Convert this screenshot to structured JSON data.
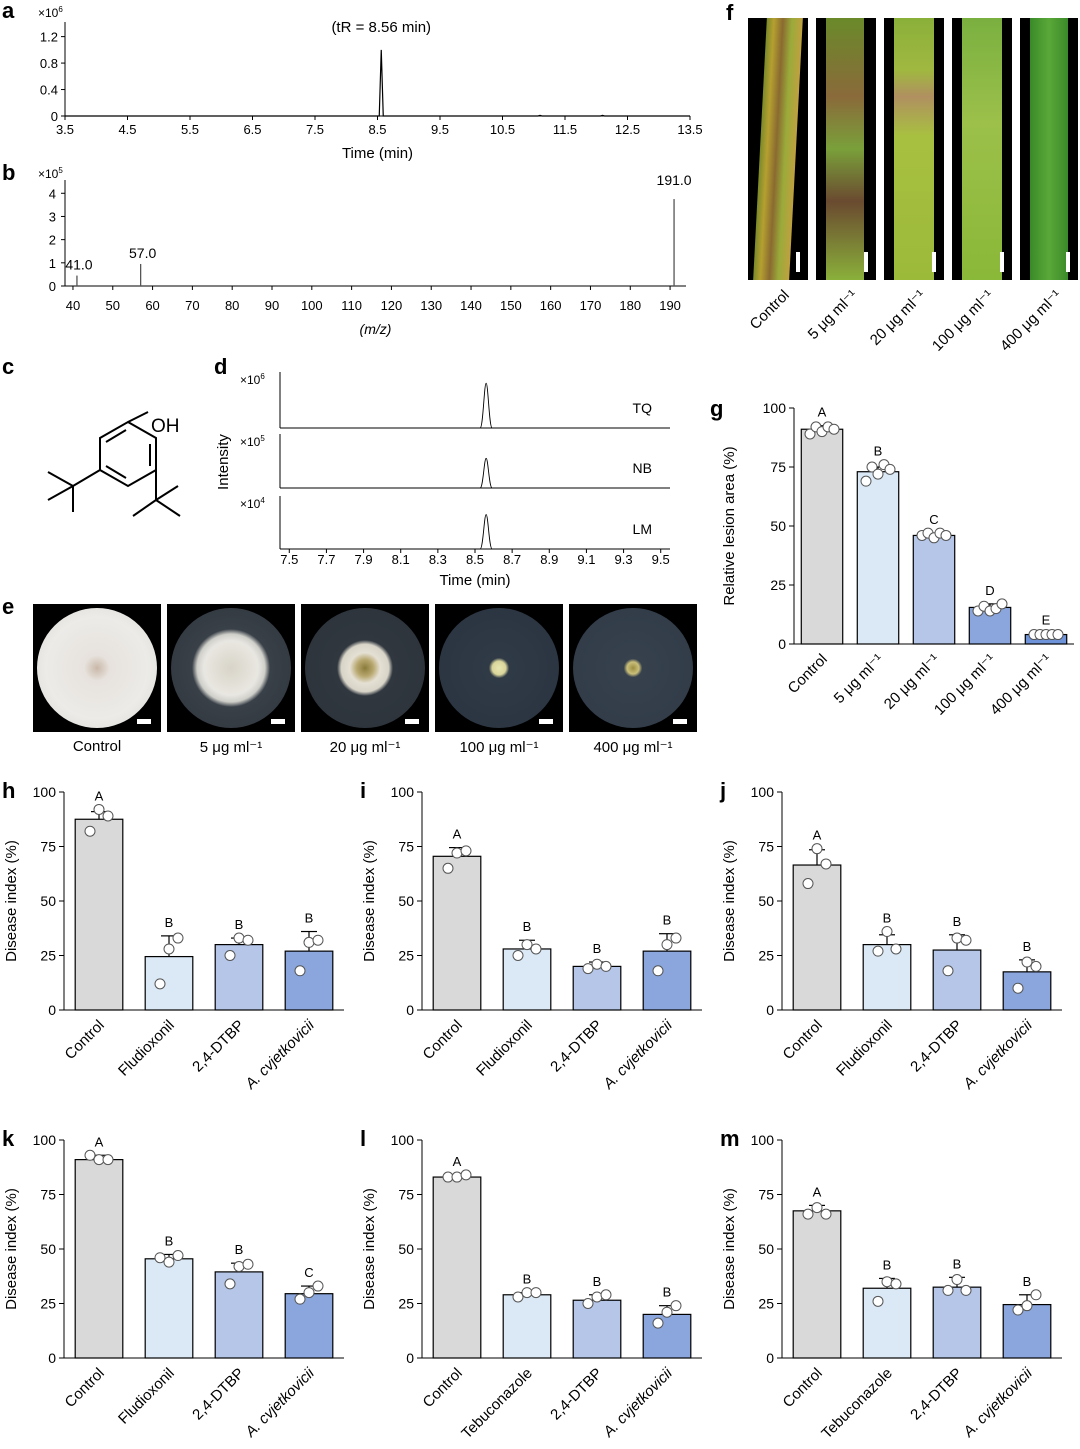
{
  "panels": {
    "a": {
      "label": "a",
      "peak_note": "(tR = 8.56 min)",
      "exponent": "×10",
      "exponent_power": "6",
      "xlabel": "Time (min)",
      "xticks": [
        "3.5",
        "4.5",
        "5.5",
        "6.5",
        "7.5",
        "8.5",
        "9.5",
        "10.5",
        "11.5",
        "12.5",
        "13.5"
      ],
      "yticks": [
        "0",
        "0.4",
        "0.8",
        "1.2"
      ]
    },
    "b": {
      "label": "b",
      "exponent": "×10",
      "exponent_power": "5",
      "xlabel": "(m/z)",
      "xticks": [
        "40",
        "50",
        "60",
        "70",
        "80",
        "90",
        "100",
        "110",
        "120",
        "130",
        "140",
        "150",
        "160",
        "170",
        "180",
        "190"
      ],
      "yticks": [
        "0",
        "1",
        "2",
        "3",
        "4"
      ],
      "peak_labels": [
        "41.0",
        "57.0",
        "191.0"
      ]
    },
    "c": {
      "label": "c",
      "oh": "OH"
    },
    "d": {
      "label": "d",
      "ylabel": "Intensity",
      "xlabel": "Time (min)",
      "xticks": [
        "7.5",
        "7.7",
        "7.9",
        "8.1",
        "8.3",
        "8.5",
        "8.7",
        "8.9",
        "9.1",
        "9.3",
        "9.5"
      ],
      "traces": [
        {
          "name": "TQ",
          "exponent": "×10",
          "power": "6"
        },
        {
          "name": "NB",
          "exponent": "×10",
          "power": "5"
        },
        {
          "name": "LM",
          "exponent": "×10",
          "power": "4"
        }
      ]
    },
    "e": {
      "label": "e",
      "dishes": [
        "Control",
        "5 μg ml⁻¹",
        "20 μg ml⁻¹",
        "100 μg ml⁻¹",
        "400 μg ml⁻¹"
      ]
    },
    "f": {
      "label": "f",
      "leaves": [
        "Control",
        "5 μg ml⁻¹",
        "20 μg ml⁻¹",
        "100 μg ml⁻¹",
        "400 μg ml⁻¹"
      ]
    },
    "g": {
      "label": "g"
    },
    "h": {
      "label": "h"
    },
    "i": {
      "label": "i"
    },
    "j": {
      "label": "j"
    },
    "k": {
      "label": "k"
    },
    "l": {
      "label": "l"
    },
    "m": {
      "label": "m"
    }
  },
  "colors": {
    "control": "#d9d9d9",
    "c1": "#dbe9f6",
    "c2": "#b5c6e8",
    "c3": "#8aa6dd",
    "c4": "#6f93d8"
  },
  "chart_data": [
    {
      "panel": "a",
      "type": "line",
      "xlabel": "Time (min)",
      "ylabel": "",
      "xlim": [
        3.5,
        13.5
      ],
      "ylim": [
        0,
        1.3
      ],
      "scale_note": "×10^6",
      "annotation": "(tR = 8.56 min)",
      "x": [
        8.56,
        11.1,
        12.1
      ],
      "values": [
        1.0,
        0.01,
        0.01
      ]
    },
    {
      "panel": "b",
      "type": "bar",
      "xlabel": "(m/z)",
      "ylabel": "",
      "xlim": [
        38,
        194
      ],
      "ylim": [
        0,
        4.4
      ],
      "scale_note": "×10^5",
      "x": [
        41.0,
        57.0,
        191.0
      ],
      "values": [
        0.45,
        0.95,
        3.75
      ]
    },
    {
      "panel": "d",
      "type": "line",
      "xlabel": "Time (min)",
      "ylabel": "Intensity",
      "xlim": [
        7.45,
        9.55
      ],
      "series": [
        {
          "name": "TQ",
          "peak_x": 8.56,
          "peak_value": 0.8
        },
        {
          "name": "NB",
          "peak_x": 8.56,
          "peak_value": 0.55
        },
        {
          "name": "LM",
          "peak_x": 8.56,
          "peak_value": 0.65
        }
      ]
    },
    {
      "panel": "g",
      "type": "bar",
      "xlabel": "",
      "ylabel": "Relative lesion area (%)",
      "ylim": [
        0,
        100
      ],
      "yticks": [
        "0",
        "25",
        "50",
        "75",
        "100"
      ],
      "categories": [
        "Control",
        "5 μg ml⁻¹",
        "20 μg ml⁻¹",
        "100 μg ml⁻¹",
        "400 μg ml⁻¹"
      ],
      "values": [
        91,
        73,
        46,
        15.5,
        4
      ],
      "errors": [
        1.5,
        2,
        1,
        1.5,
        0.5
      ],
      "letters": [
        "A",
        "B",
        "C",
        "D",
        "E"
      ],
      "points": [
        [
          89,
          92,
          90,
          92,
          91
        ],
        [
          69,
          75,
          72,
          76,
          74
        ],
        [
          46,
          47,
          45,
          47,
          46
        ],
        [
          14,
          16,
          14,
          15,
          17
        ],
        [
          4,
          4,
          4,
          4,
          4
        ]
      ]
    },
    {
      "panel": "h",
      "type": "bar",
      "ylabel": "Disease index (%)",
      "ylim": [
        0,
        100
      ],
      "yticks": [
        "0",
        "25",
        "50",
        "75",
        "100"
      ],
      "categories": [
        "Control",
        "Fludioxonil",
        "2,4-DTBP",
        "A. cvjetkovicii"
      ],
      "values": [
        87.5,
        24.5,
        30,
        27
      ],
      "errors": [
        3.5,
        9.5,
        3,
        9
      ],
      "letters": [
        "A",
        "B",
        "B",
        "B"
      ],
      "points": [
        [
          82,
          92,
          89
        ],
        [
          12,
          28,
          33
        ],
        [
          25,
          33,
          32
        ],
        [
          18,
          31,
          32
        ]
      ]
    },
    {
      "panel": "i",
      "type": "bar",
      "ylabel": "Disease index (%)",
      "ylim": [
        0,
        100
      ],
      "yticks": [
        "0",
        "25",
        "50",
        "75",
        "100"
      ],
      "categories": [
        "Control",
        "Fludioxonil",
        "2,4-DTBP",
        "A. cvjetkovicii"
      ],
      "values": [
        70.5,
        28,
        20,
        27
      ],
      "errors": [
        4,
        4,
        2,
        8
      ],
      "letters": [
        "A",
        "B",
        "B",
        "B"
      ],
      "points": [
        [
          65,
          72,
          73
        ],
        [
          25,
          30,
          28
        ],
        [
          19,
          21,
          20
        ],
        [
          18,
          30,
          33
        ]
      ]
    },
    {
      "panel": "j",
      "type": "bar",
      "ylabel": "Disease index (%)",
      "ylim": [
        0,
        100
      ],
      "yticks": [
        "0",
        "25",
        "50",
        "75",
        "100"
      ],
      "categories": [
        "Control",
        "Fludioxonil",
        "2,4-DTBP",
        "A. cvjetkovicii"
      ],
      "values": [
        66.5,
        30,
        27.5,
        17.5
      ],
      "errors": [
        7,
        4.5,
        7,
        5.5
      ],
      "letters": [
        "A",
        "B",
        "B",
        "B"
      ],
      "points": [
        [
          58,
          74,
          67
        ],
        [
          27,
          36,
          28
        ],
        [
          18,
          33,
          32
        ],
        [
          10,
          22,
          20
        ]
      ]
    },
    {
      "panel": "k",
      "type": "bar",
      "ylabel": "Disease index (%)",
      "ylim": [
        0,
        100
      ],
      "yticks": [
        "0",
        "25",
        "50",
        "75",
        "100"
      ],
      "categories": [
        "Control",
        "Fludioxonil",
        "2,4-DTBP",
        "A. cvjetkovicii"
      ],
      "values": [
        91,
        45.5,
        39.5,
        29.5
      ],
      "errors": [
        2,
        2,
        4,
        3.5
      ],
      "letters": [
        "A",
        "B",
        "B",
        "C"
      ],
      "points": [
        [
          93,
          91,
          91
        ],
        [
          46,
          44,
          47
        ],
        [
          34,
          42,
          43
        ],
        [
          27,
          30,
          33
        ]
      ]
    },
    {
      "panel": "l",
      "type": "bar",
      "ylabel": "Disease index (%)",
      "ylim": [
        0,
        100
      ],
      "yticks": [
        "0",
        "25",
        "50",
        "75",
        "100"
      ],
      "categories": [
        "Control",
        "Tebuconazole",
        "2,4-DTBP",
        "A. cvjetkovicii"
      ],
      "values": [
        83,
        29,
        26.5,
        20
      ],
      "errors": [
        1,
        1,
        2.5,
        4
      ],
      "letters": [
        "A",
        "B",
        "B",
        "B"
      ],
      "points": [
        [
          83,
          83,
          84
        ],
        [
          28,
          30,
          30
        ],
        [
          25,
          28,
          29
        ],
        [
          16,
          21,
          24
        ]
      ]
    },
    {
      "panel": "m",
      "type": "bar",
      "ylabel": "Disease index (%)",
      "ylim": [
        0,
        100
      ],
      "yticks": [
        "0",
        "25",
        "50",
        "75",
        "100"
      ],
      "categories": [
        "Control",
        "Tebuconazole",
        "2,4-DTBP",
        "A. cvjetkovicii"
      ],
      "values": [
        67.5,
        32,
        32.5,
        24.5
      ],
      "errors": [
        2.5,
        4.5,
        4.5,
        4.5
      ],
      "letters": [
        "A",
        "B",
        "B",
        "B"
      ],
      "points": [
        [
          66,
          69,
          66
        ],
        [
          26,
          35,
          34
        ],
        [
          31,
          36,
          31
        ],
        [
          22,
          24,
          29
        ]
      ]
    }
  ]
}
